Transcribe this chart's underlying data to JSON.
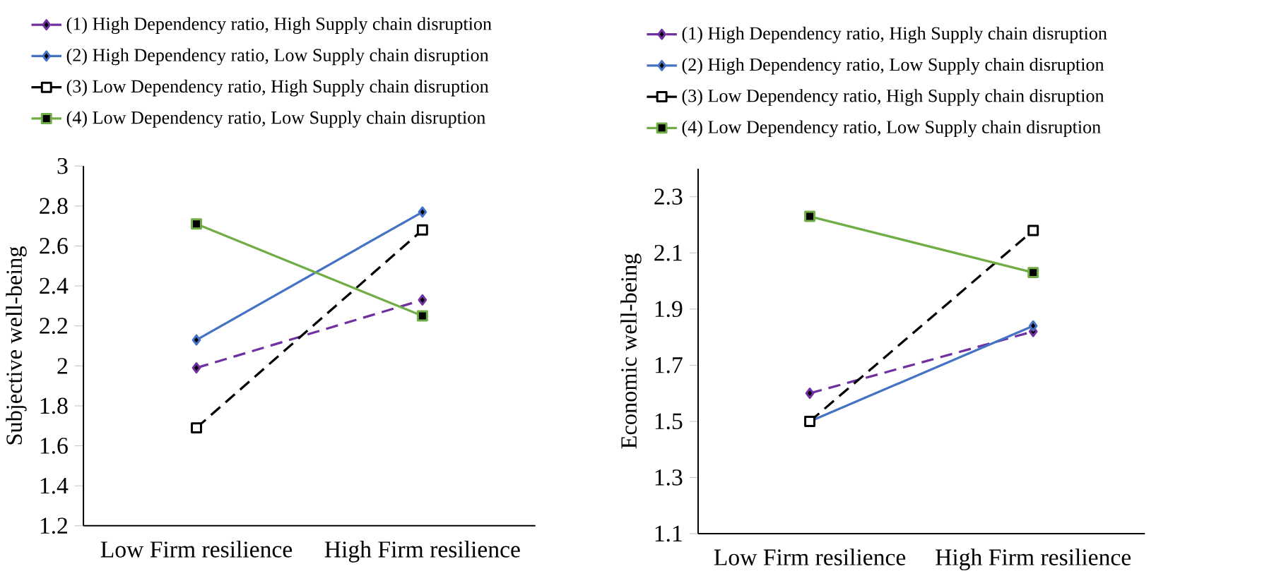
{
  "chart_data": [
    {
      "type": "line",
      "categories": [
        "Low Firm resilience",
        "High Firm resilience"
      ],
      "ylabel": "Subjective well-being",
      "ylim": [
        1.2,
        3
      ],
      "yticks": [
        1.2,
        1.4,
        1.6,
        1.8,
        2,
        2.2,
        2.4,
        2.6,
        2.8,
        3
      ],
      "legend": "top",
      "grid": false,
      "series": [
        {
          "name": "(1) High Dependency ratio, High Supply chain disruption",
          "color": "#7030a0",
          "values": [
            1.99,
            2.33
          ],
          "marker": "diamond",
          "line_style": "dashed"
        },
        {
          "name": "(2) High Dependency ratio, Low Supply chain disruption",
          "color": "#4472c4",
          "values": [
            2.13,
            2.77
          ],
          "marker": "diamond",
          "line_style": "solid"
        },
        {
          "name": "(3) Low Dependency ratio, High Supply chain disruption",
          "color": "#000000",
          "values": [
            1.69,
            2.68
          ],
          "marker": "square",
          "line_style": "dashed"
        },
        {
          "name": "(4) Low Dependency ratio, Low Supply chain disruption",
          "color": "#70ad47",
          "values": [
            2.71,
            2.25
          ],
          "marker": "square",
          "line_style": "solid"
        }
      ]
    },
    {
      "type": "line",
      "categories": [
        "Low Firm resilience",
        "High Firm resilience"
      ],
      "ylabel": "Economic well-being",
      "ylim": [
        1.1,
        2.4
      ],
      "yticks": [
        1.1,
        1.3,
        1.5,
        1.7,
        1.9,
        2.1,
        2.3
      ],
      "legend": "top",
      "grid": false,
      "series": [
        {
          "name": "(1) High Dependency ratio, High Supply chain disruption",
          "color": "#7030a0",
          "values": [
            1.6,
            1.82
          ],
          "marker": "diamond",
          "line_style": "dashed"
        },
        {
          "name": "(2) High Dependency ratio, Low Supply chain disruption",
          "color": "#4472c4",
          "values": [
            1.5,
            1.84
          ],
          "marker": "diamond",
          "line_style": "solid"
        },
        {
          "name": "(3) Low Dependency ratio, High Supply chain disruption",
          "color": "#000000",
          "values": [
            1.5,
            2.18
          ],
          "marker": "square",
          "line_style": "dashed"
        },
        {
          "name": "(4) Low Dependency ratio, Low Supply chain disruption",
          "color": "#70ad47",
          "values": [
            2.23,
            2.03
          ],
          "marker": "square",
          "line_style": "solid"
        }
      ]
    }
  ]
}
